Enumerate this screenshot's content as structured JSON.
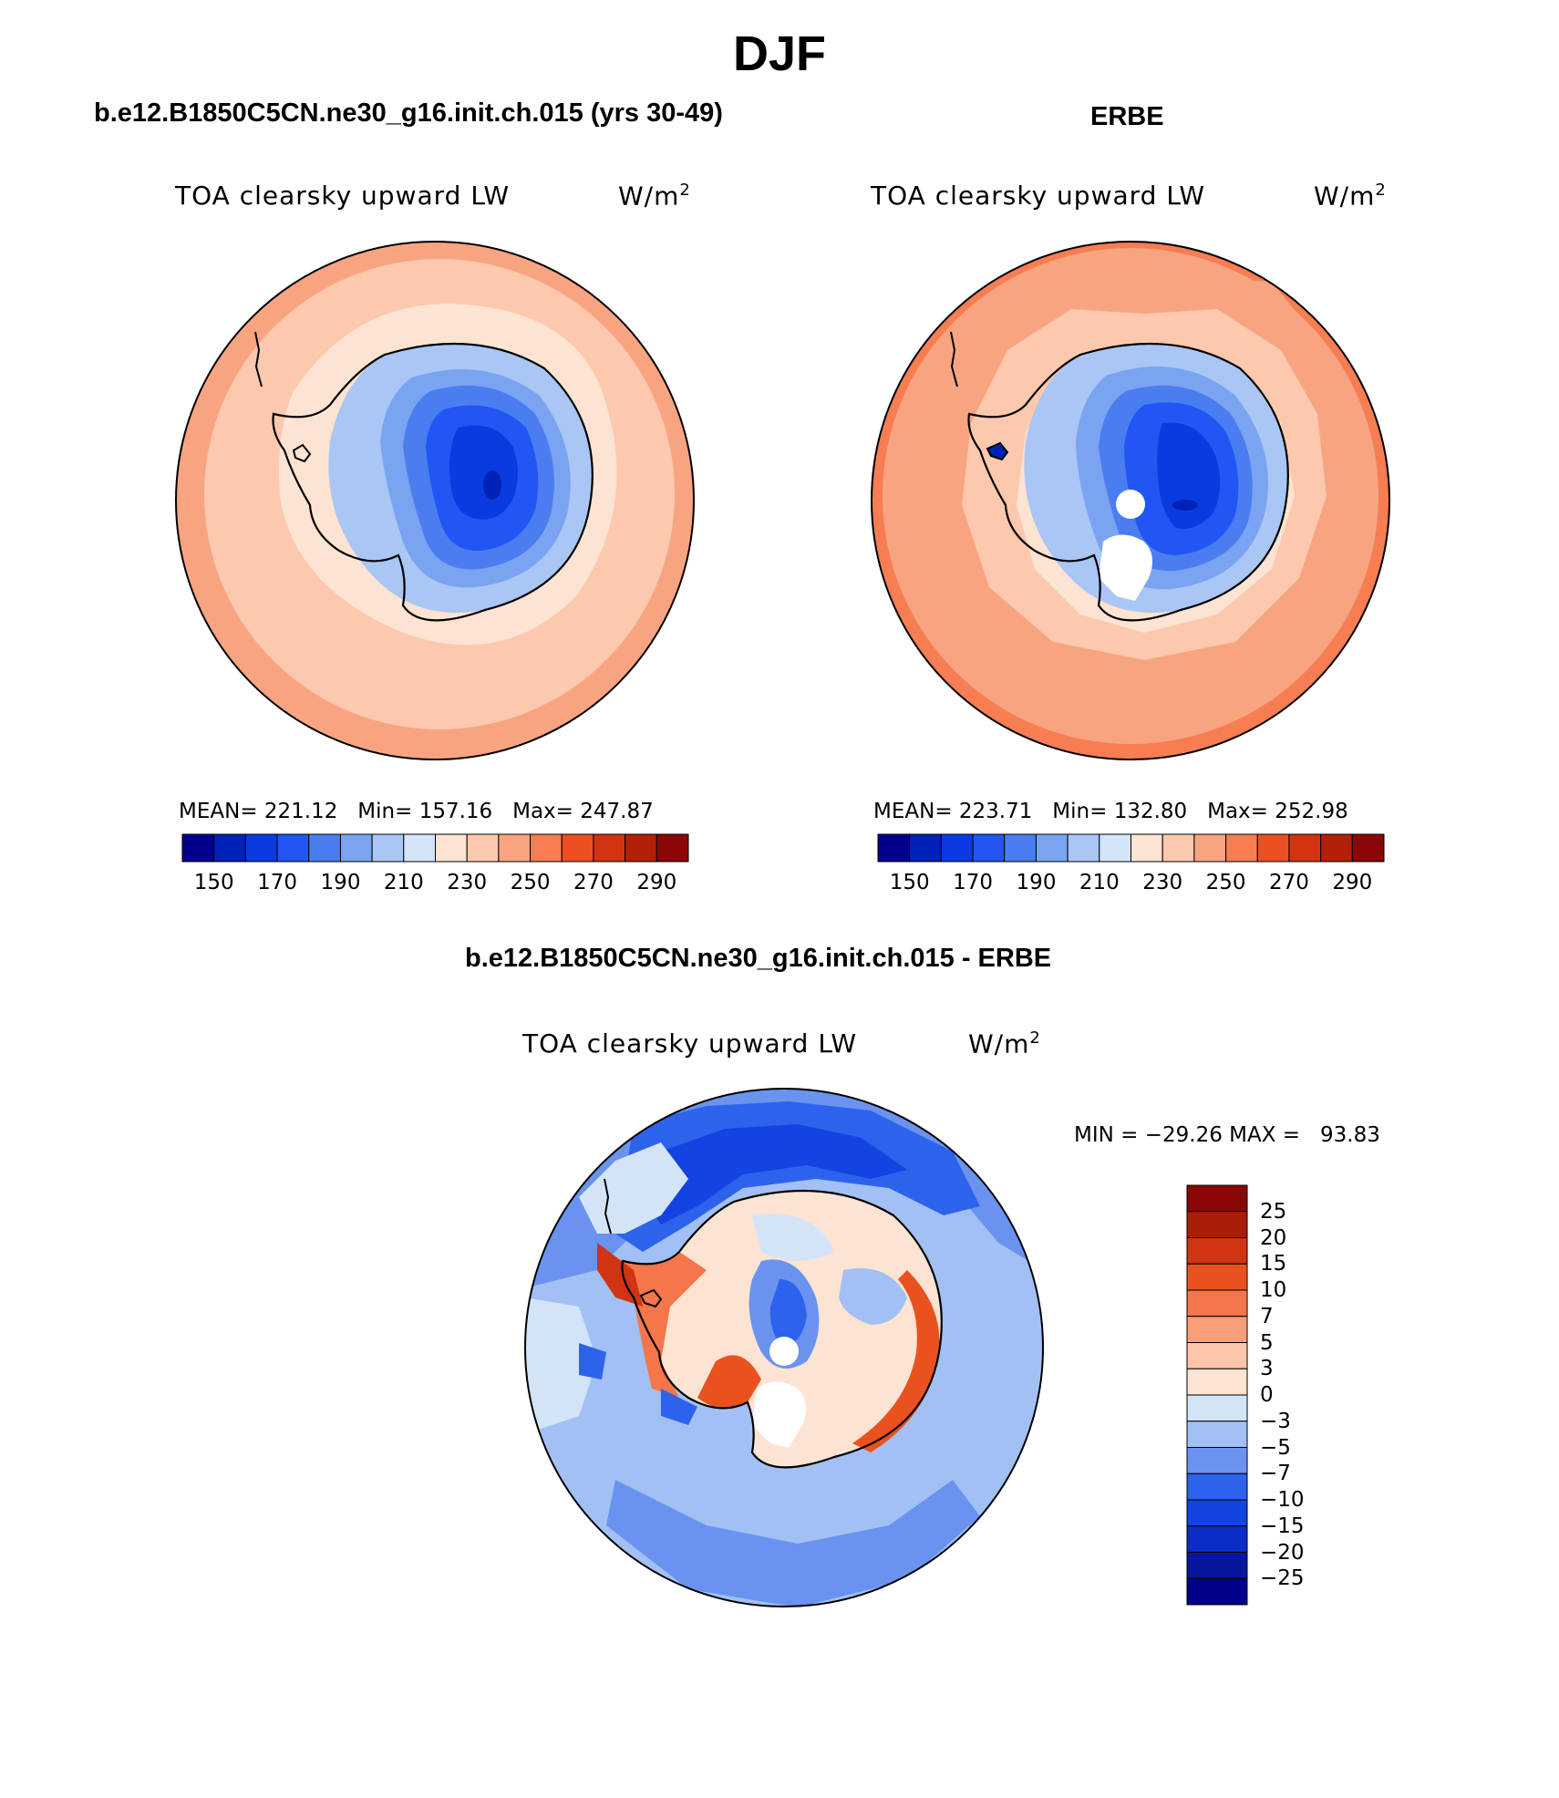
{
  "figure": {
    "title": "DJF"
  },
  "panels": [
    {
      "title": "b.e12.B1850C5CN.ne30_g16.init.ch.015 (yrs 30-49)",
      "variable": "TOA clearsky upward LW",
      "units_base": "W/m",
      "units_exp": "2",
      "stats": "MEAN= 221.12   Min= 157.16   Max= 247.87",
      "colorbar_ticks": [
        "150",
        "170",
        "190",
        "210",
        "230",
        "250",
        "270",
        "290"
      ]
    },
    {
      "title": "ERBE",
      "variable": "TOA clearsky upward LW",
      "units_base": "W/m",
      "units_exp": "2",
      "stats": "MEAN= 223.71   Min= 132.80   Max= 252.98",
      "colorbar_ticks": [
        "150",
        "170",
        "190",
        "210",
        "230",
        "250",
        "270",
        "290"
      ]
    },
    {
      "title": "b.e12.B1850C5CN.ne30_g16.init.ch.015 - ERBE",
      "variable": "TOA clearsky upward LW",
      "units_base": "W/m",
      "units_exp": "2",
      "stats": "MIN = −29.26 MAX =   93.83",
      "colorbar_ticks": [
        "25",
        "20",
        "15",
        "10",
        "7",
        "5",
        "3",
        "0",
        "−3",
        "−5",
        "−7",
        "−10",
        "−15",
        "−20",
        "−25"
      ]
    }
  ],
  "colors": {
    "abs_scale": [
      "#00008b",
      "#0022b8",
      "#0a3be0",
      "#2156f5",
      "#4a7ef0",
      "#7aa3f2",
      "#a9c6f5",
      "#d4e5f8",
      "#fde3d2",
      "#fcc8ae",
      "#f9a481",
      "#f77d52",
      "#ec4f22",
      "#d23412",
      "#b22008",
      "#8b0606"
    ],
    "diff_scale": [
      "#00008b",
      "#06179e",
      "#0a2dc8",
      "#1343e0",
      "#2d63ec",
      "#6a93f0",
      "#a2c0f3",
      "#d3e4f9",
      "#fde3d2",
      "#fcc4a8",
      "#f99e7a",
      "#f5764a",
      "#e9521f",
      "#d03412",
      "#aa1d08",
      "#8b0606"
    ]
  }
}
